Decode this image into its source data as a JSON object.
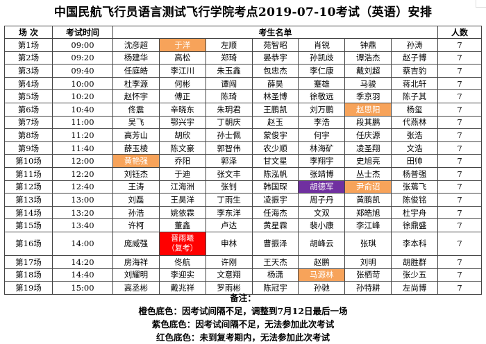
{
  "title": "中国民航飞行员语言测试飞行学院考点2019-07-10考试（英语）安排",
  "headers": {
    "session": "场  次",
    "time": "考试时间",
    "names": "考生名单",
    "count": "人数"
  },
  "rows": [
    {
      "session": "第1场",
      "time": "09:00",
      "names": [
        "沈彦超",
        "于洋",
        "左顺",
        "苑智昭",
        "肖锐",
        "钟鼎",
        "孙涛"
      ],
      "count": "7"
    },
    {
      "session": "第2场",
      "time": "09:20",
      "names": [
        "杨建华",
        "高松",
        "郑琦",
        "晏恭宇",
        "孙凯歧",
        "谭浩杰",
        "赵子博"
      ],
      "count": "7"
    },
    {
      "session": "第3场",
      "time": "09:40",
      "names": [
        "任庭皓",
        "李江川",
        "朱玉鑫",
        "包忠杰",
        "李仁康",
        "戴刘超",
        "蔡吉豹"
      ],
      "count": "7"
    },
    {
      "session": "第4场",
      "time": "10:00",
      "names": [
        "杜李源",
        "何彬",
        "谭闯",
        "薛昊",
        "蹇雄",
        "马骏",
        "蒋北轩"
      ],
      "count": "7"
    },
    {
      "session": "第5场",
      "time": "10:20",
      "names": [
        "赵怀宇",
        "傅正",
        "陈琦",
        "林圣博",
        "徐敬远",
        "季京羽",
        "陈子其"
      ],
      "count": "7"
    },
    {
      "session": "第6场",
      "time": "10:40",
      "names": [
        "佟震",
        "辛晓东",
        "朱玥君",
        "王鹏凯",
        "刘万鹏",
        "赵思阳",
        "杨玺"
      ],
      "count": "7"
    },
    {
      "session": "第7场",
      "time": "11:00",
      "names": [
        "吴飞",
        "鄂兴宇",
        "丁朝庆",
        "赵玉",
        "李浩",
        "段其鹏",
        "代燕林"
      ],
      "count": "7"
    },
    {
      "session": "第8场",
      "time": "11:20",
      "names": [
        "高芳山",
        "胡欣",
        "孙士佩",
        "蒙俊宇",
        "何宇",
        "任庆源",
        "张浩"
      ],
      "count": "7"
    },
    {
      "session": "第9场",
      "time": "11:40",
      "names": [
        "薛玉棱",
        "陈文豪",
        "郭智伟",
        "农少顺",
        "林海矿",
        "凌圣翔",
        "文浩"
      ],
      "count": "7"
    },
    {
      "session": "第10场",
      "time": "12:00",
      "names": [
        "黄艳强",
        "乔阳",
        "郭泽",
        "甘文星",
        "李翔宇",
        "史旭亮",
        "田帅"
      ],
      "count": "7"
    },
    {
      "session": "第11场",
      "time": "12:20",
      "names": [
        "刘钰杰",
        "于迪",
        "张文丰",
        "陈泓帆",
        "张靖博",
        "丛士杰",
        "杨普强"
      ],
      "count": "7"
    },
    {
      "session": "第12场",
      "time": "12:40",
      "names": [
        "王涛",
        "江海洲",
        "张钊",
        "韩国琛",
        "胡德军",
        "尹俞诏",
        "张蔫飞"
      ],
      "count": "7"
    },
    {
      "session": "第13场",
      "time": "13:00",
      "names": [
        "刘磊",
        "王昊洋",
        "丁雨生",
        "凌振宇",
        "周子丹",
        "黄鹏凯",
        "陈俊铭"
      ],
      "count": "7"
    },
    {
      "session": "第14场",
      "time": "13:20",
      "names": [
        "孙浩",
        "姚依霖",
        "李东洋",
        "任海杰",
        "文双",
        "郑皓旭",
        "杜宇舟"
      ],
      "count": "7"
    },
    {
      "session": "第15场",
      "time": "13:40",
      "names": [
        "许柯",
        "董鑫",
        "卢达",
        "黄星霖",
        "裴小康",
        "李江峰",
        "徐鼎盛"
      ],
      "count": "7"
    },
    {
      "session": "第16场",
      "time": "14:00",
      "names": [
        "庞威强",
        "晋雨曦\n（复考）",
        "申林",
        "曹振泽",
        "胡峰云",
        "张琪",
        "李本科"
      ],
      "count": "7"
    },
    {
      "session": "第17场",
      "time": "14:20",
      "names": [
        "房海祥",
        "佟航",
        "许刚",
        "王天杰",
        "赵鹏",
        "刘明",
        "胡胜群"
      ],
      "count": "7"
    },
    {
      "session": "第18场",
      "time": "14:40",
      "names": [
        "刘耀明",
        "李迎实",
        "文意翔",
        "杨潇",
        "马源林",
        "张栖苛",
        "张少五"
      ],
      "count": "7"
    },
    {
      "session": "第19场",
      "time": "15:00",
      "names": [
        "高丞彬",
        "戴兆祥",
        "罗雨彬",
        "陈冠宇",
        "孙驰",
        "孙特耕",
        "左尚博"
      ],
      "count": "7"
    }
  ],
  "highlights": [
    {
      "row": 0,
      "col": 1,
      "color": "orange"
    },
    {
      "row": 5,
      "col": 5,
      "color": "orange"
    },
    {
      "row": 9,
      "col": 0,
      "color": "orange"
    },
    {
      "row": 11,
      "col": 4,
      "color": "purple"
    },
    {
      "row": 11,
      "col": 5,
      "color": "orange"
    },
    {
      "row": 15,
      "col": 1,
      "color": "red"
    },
    {
      "row": 17,
      "col": 4,
      "color": "orange"
    }
  ],
  "colors": {
    "orange": "#f7a35a",
    "purple": "#7030a0",
    "red": "#ff0000"
  },
  "notes": {
    "heading": "备注：",
    "orange": "橙色底色：因考试间隔不足，调整到7月12日最后一场",
    "purple": "紫色底色：因考试间隔不足，无法参加此次考试",
    "red": "红色底色：未到复考期内，无法参加此次考试"
  }
}
